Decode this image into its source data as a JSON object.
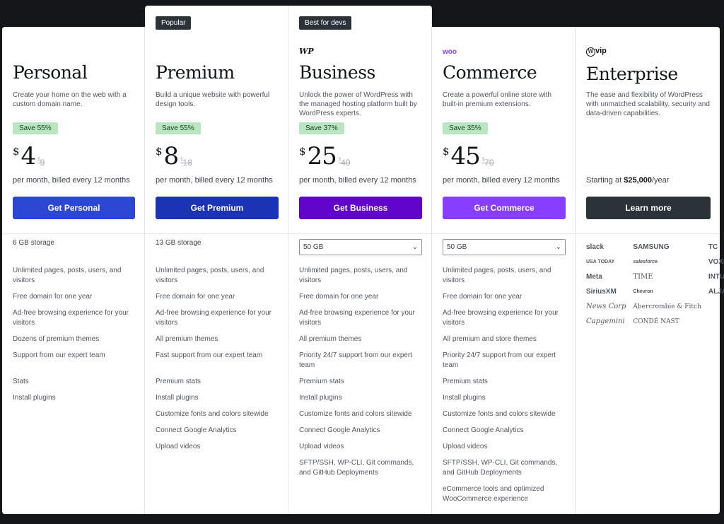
{
  "plans": [
    {
      "name": "Personal",
      "tag": "",
      "logo": "",
      "description": "Create your home on the web with a custom domain name.",
      "save": "Save 55%",
      "currency": "$",
      "price": "4",
      "old_price": "9",
      "billing": "per month, billed every 12 months",
      "button": "Get Personal",
      "button_color": "#2b47d3",
      "storage": "6 GB storage",
      "features": [
        "Unlimited pages, posts, users, and visitors",
        "Free domain for one year",
        "Ad-free browsing experience for your visitors",
        "Dozens of premium themes",
        "Support from our expert team",
        "Stats",
        "Install plugins"
      ]
    },
    {
      "name": "Premium",
      "tag": "Popular",
      "logo": "",
      "description": "Build a unique website with powerful design tools.",
      "save": "Save 55%",
      "currency": "$",
      "price": "8",
      "old_price": "18",
      "billing": "per month, billed every 12 months",
      "button": "Get Premium",
      "button_color": "#1c33b5",
      "storage": "13 GB storage",
      "features": [
        "Unlimited pages, posts, users, and visitors",
        "Free domain for one year",
        "Ad-free browsing experience for your visitors",
        "All premium themes",
        "Fast support from our expert team",
        "Premium stats",
        "Install plugins",
        "Customize fonts and colors sitewide",
        "Connect Google Analytics",
        "Upload videos"
      ]
    },
    {
      "name": "Business",
      "tag": "Best for devs",
      "logo": "WP",
      "description": "Unlock the power of WordPress with the managed hosting platform built by WordPress experts.",
      "save": "Save 37%",
      "currency": "$",
      "price": "25",
      "old_price": "40",
      "billing": "per month, billed every 12 months",
      "button": "Get Business",
      "button_color": "#6004cc",
      "storage": "50 GB",
      "features": [
        "Unlimited pages, posts, users, and visitors",
        "Free domain for one year",
        "Ad-free browsing experience for your visitors",
        "All premium themes",
        "Priority 24/7 support from our expert team",
        "Premium stats",
        "Install plugins",
        "Customize fonts and colors sitewide",
        "Connect Google Analytics",
        "Upload videos",
        "SFTP/SSH, WP-CLI, Git commands, and GitHub Deployments"
      ]
    },
    {
      "name": "Commerce",
      "tag": "",
      "logo": "woo",
      "description": "Create a powerful online store with built-in premium extensions.",
      "save": "Save 35%",
      "currency": "$",
      "price": "45",
      "old_price": "70",
      "billing": "per month, billed every 12 months",
      "button": "Get Commerce",
      "button_color": "#873eff",
      "storage": "50 GB",
      "features": [
        "Unlimited pages, posts, users, and visitors",
        "Free domain for one year",
        "Ad-free browsing experience for your visitors",
        "All premium and store themes",
        "Priority 24/7 support from our expert team",
        "Premium stats",
        "Install plugins",
        "Customize fonts and colors sitewide",
        "Connect Google Analytics",
        "Upload videos",
        "SFTP/SSH, WP-CLI, Git commands, and GitHub Deployments",
        "eCommerce tools and optimized WooCommerce experience"
      ]
    }
  ],
  "enterprise": {
    "name": "Enterprise",
    "logo": "vip",
    "description": "The ease and flexibility of WordPress with unmatched scalability, security and data-driven capabilities.",
    "starting_prefix": "Starting at ",
    "starting_price": "$25,000",
    "starting_suffix": "/year",
    "button": "Learn more",
    "button_color": "#2c3338",
    "clients": [
      "slack",
      "SAMSUNG",
      "TC",
      "USA TODAY",
      "salesforce",
      "VOXMEDIA",
      "Meta",
      "TIME",
      "INTUIT",
      "SiriusXM",
      "Chevron",
      "ALJAZEERA",
      "News Corp",
      "Abercrombie & Fitch",
      "",
      "Capgemini",
      "CONDÉ NAST",
      ""
    ]
  }
}
